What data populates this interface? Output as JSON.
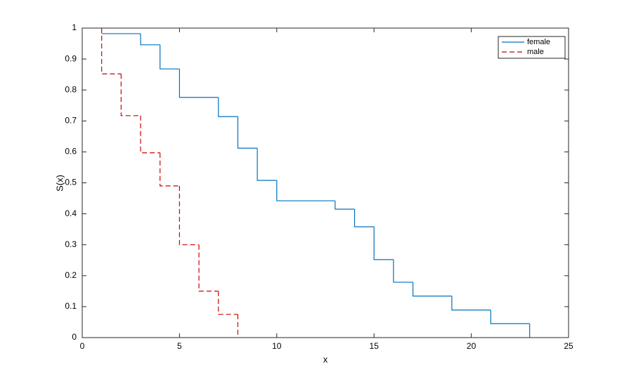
{
  "chart_data": {
    "type": "step",
    "xlabel": "x",
    "ylabel": "S(x)",
    "xlim": [
      0,
      25
    ],
    "xticks": [
      0,
      5,
      10,
      15,
      20,
      25
    ],
    "ylim": [
      0,
      1
    ],
    "yticks": [
      0,
      0.1,
      0.2,
      0.3,
      0.4,
      0.5,
      0.6,
      0.7,
      0.8,
      0.9,
      1
    ],
    "legend": "upper right",
    "series": [
      {
        "name": "female",
        "color": "#0072bd",
        "dash": "solid",
        "x": [
          1,
          3,
          4,
          5,
          7,
          8,
          9,
          10,
          13,
          14,
          15,
          16,
          17,
          19,
          21,
          23
        ],
        "values": [
          0.982,
          0.946,
          0.868,
          0.776,
          0.714,
          0.612,
          0.508,
          0.442,
          0.415,
          0.358,
          0.252,
          0.179,
          0.134,
          0.089,
          0.045,
          0
        ]
      },
      {
        "name": "male",
        "color": "#cc0000",
        "dash": "dashed",
        "x": [
          1,
          1,
          2,
          3,
          4,
          5,
          6,
          7,
          8
        ],
        "values": [
          1,
          0.852,
          0.717,
          0.597,
          0.49,
          0.3,
          0.15,
          0.075,
          0
        ]
      }
    ]
  }
}
